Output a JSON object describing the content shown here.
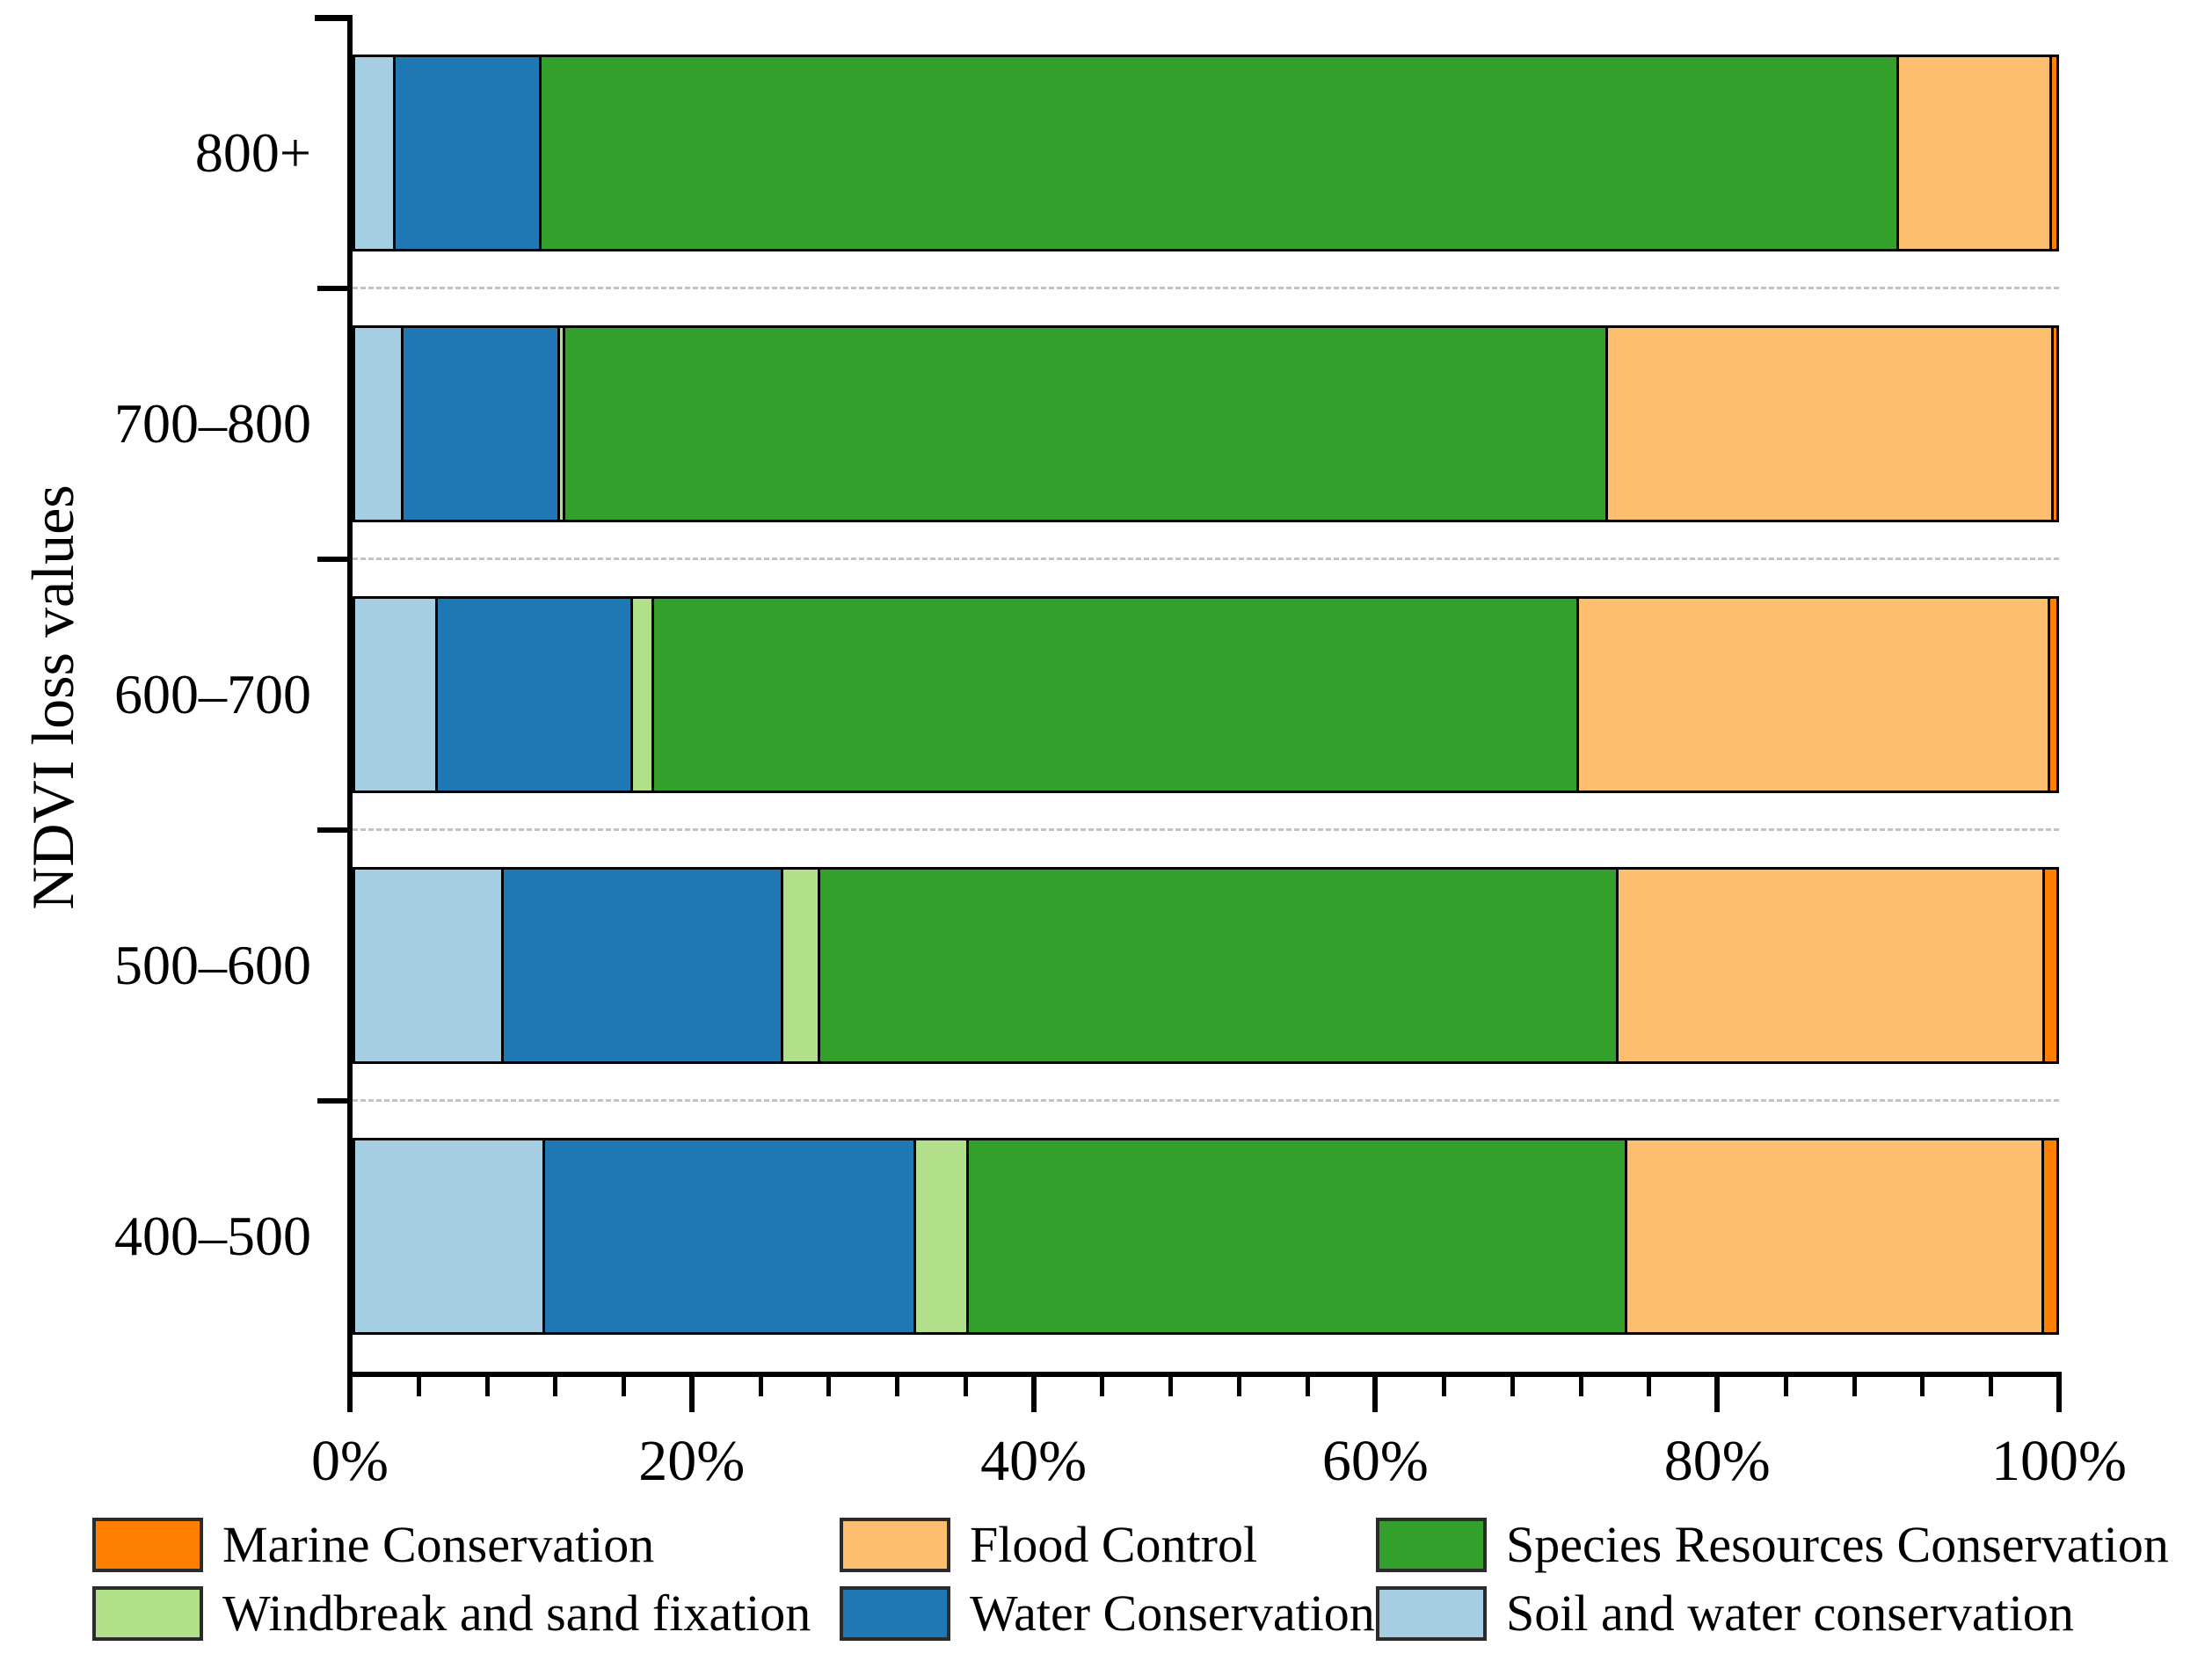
{
  "chart_data": {
    "type": "bar",
    "variant": "horizontal-stacked-percentage",
    "title": "",
    "xlabel": "",
    "ylabel": "NDVI loss values",
    "categories": [
      "800+",
      "700–800",
      "600–700",
      "500–600",
      "400–500"
    ],
    "series": [
      {
        "name": "Soil and water conservation",
        "color": "#a6cee3",
        "values": [
          2.2,
          2.7,
          4.7,
          8.6,
          11.0
        ]
      },
      {
        "name": "Water Conservation",
        "color": "#1f78b4",
        "values": [
          8.6,
          9.2,
          11.5,
          16.4,
          21.8
        ]
      },
      {
        "name": "Windbreak and sand fixation",
        "color": "#b2df8a",
        "values": [
          0,
          0.3,
          1.2,
          2.2,
          3.1
        ]
      },
      {
        "name": "Species Resources Conservation",
        "color": "#33a02c",
        "values": [
          79.8,
          61.3,
          54.4,
          46.9,
          38.7
        ]
      },
      {
        "name": "Flood Control",
        "color": "#fdbf6f",
        "values": [
          9.0,
          26.2,
          27.7,
          25.1,
          24.5
        ]
      },
      {
        "name": "Marine Conservation",
        "color": "#ff7f00",
        "values": [
          0.4,
          0.3,
          0.5,
          0.8,
          0.9
        ]
      }
    ],
    "xlim": [
      0,
      100
    ],
    "x_ticks": [
      {
        "value": 0,
        "label": "0%"
      },
      {
        "value": 20,
        "label": "20%"
      },
      {
        "value": 40,
        "label": "40%"
      },
      {
        "value": 60,
        "label": "60%"
      },
      {
        "value": 80,
        "label": "80%"
      },
      {
        "value": 100,
        "label": "100%"
      }
    ],
    "x_minor_tick_step": 4,
    "grid": "dashed-separators-between-bars",
    "legend_position": "bottom",
    "legend_rows": 2,
    "legend_order": [
      {
        "label": "Marine Conservation",
        "color": "#ff7f00"
      },
      {
        "label": "Flood Control",
        "color": "#fdbf6f"
      },
      {
        "label": "Species Resources Conservation",
        "color": "#33a02c"
      },
      {
        "label": "Windbreak and sand fixation",
        "color": "#b2df8a"
      },
      {
        "label": "Water Conservation",
        "color": "#1f78b4"
      },
      {
        "label": "Soil and water conservation",
        "color": "#a6cee3"
      }
    ],
    "axis_color": "#000000",
    "grid_color": "#c3c3c3"
  }
}
